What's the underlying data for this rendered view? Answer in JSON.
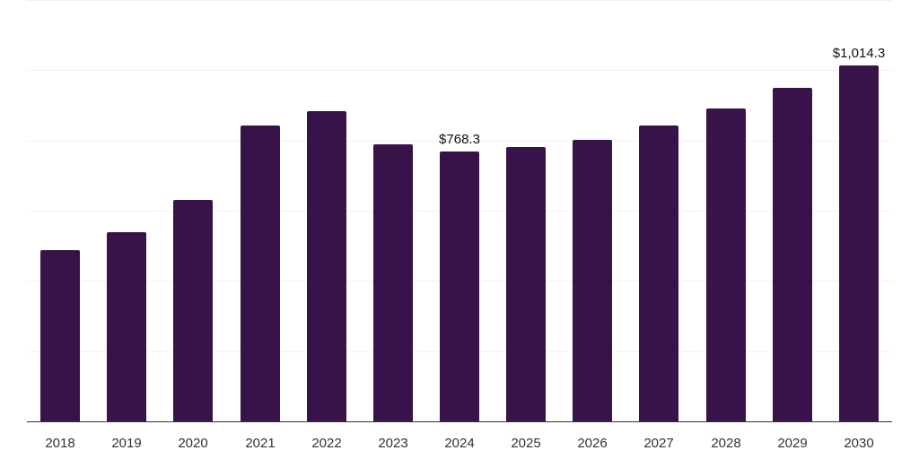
{
  "chart_data": {
    "type": "bar",
    "title": "",
    "xlabel": "",
    "ylabel": "",
    "categories": [
      "2018",
      "2019",
      "2020",
      "2021",
      "2022",
      "2023",
      "2024",
      "2025",
      "2026",
      "2027",
      "2028",
      "2029",
      "2030"
    ],
    "values": [
      486.6,
      537.8,
      630.0,
      842.6,
      883.6,
      788.8,
      768.3,
      781.0,
      801.6,
      842.6,
      891.0,
      950.0,
      1014.3
    ],
    "data_labels": [
      {
        "category": "2024",
        "text": "$768.3"
      },
      {
        "category": "2030",
        "text": "$1,014.3"
      }
    ],
    "ylim": [
      0,
      1200
    ],
    "gridlines": [
      0,
      200,
      400,
      600,
      800,
      1000,
      1200
    ],
    "grid": true,
    "y_axis_labels_visible": false,
    "legend": null,
    "bar_color": "#371349"
  }
}
